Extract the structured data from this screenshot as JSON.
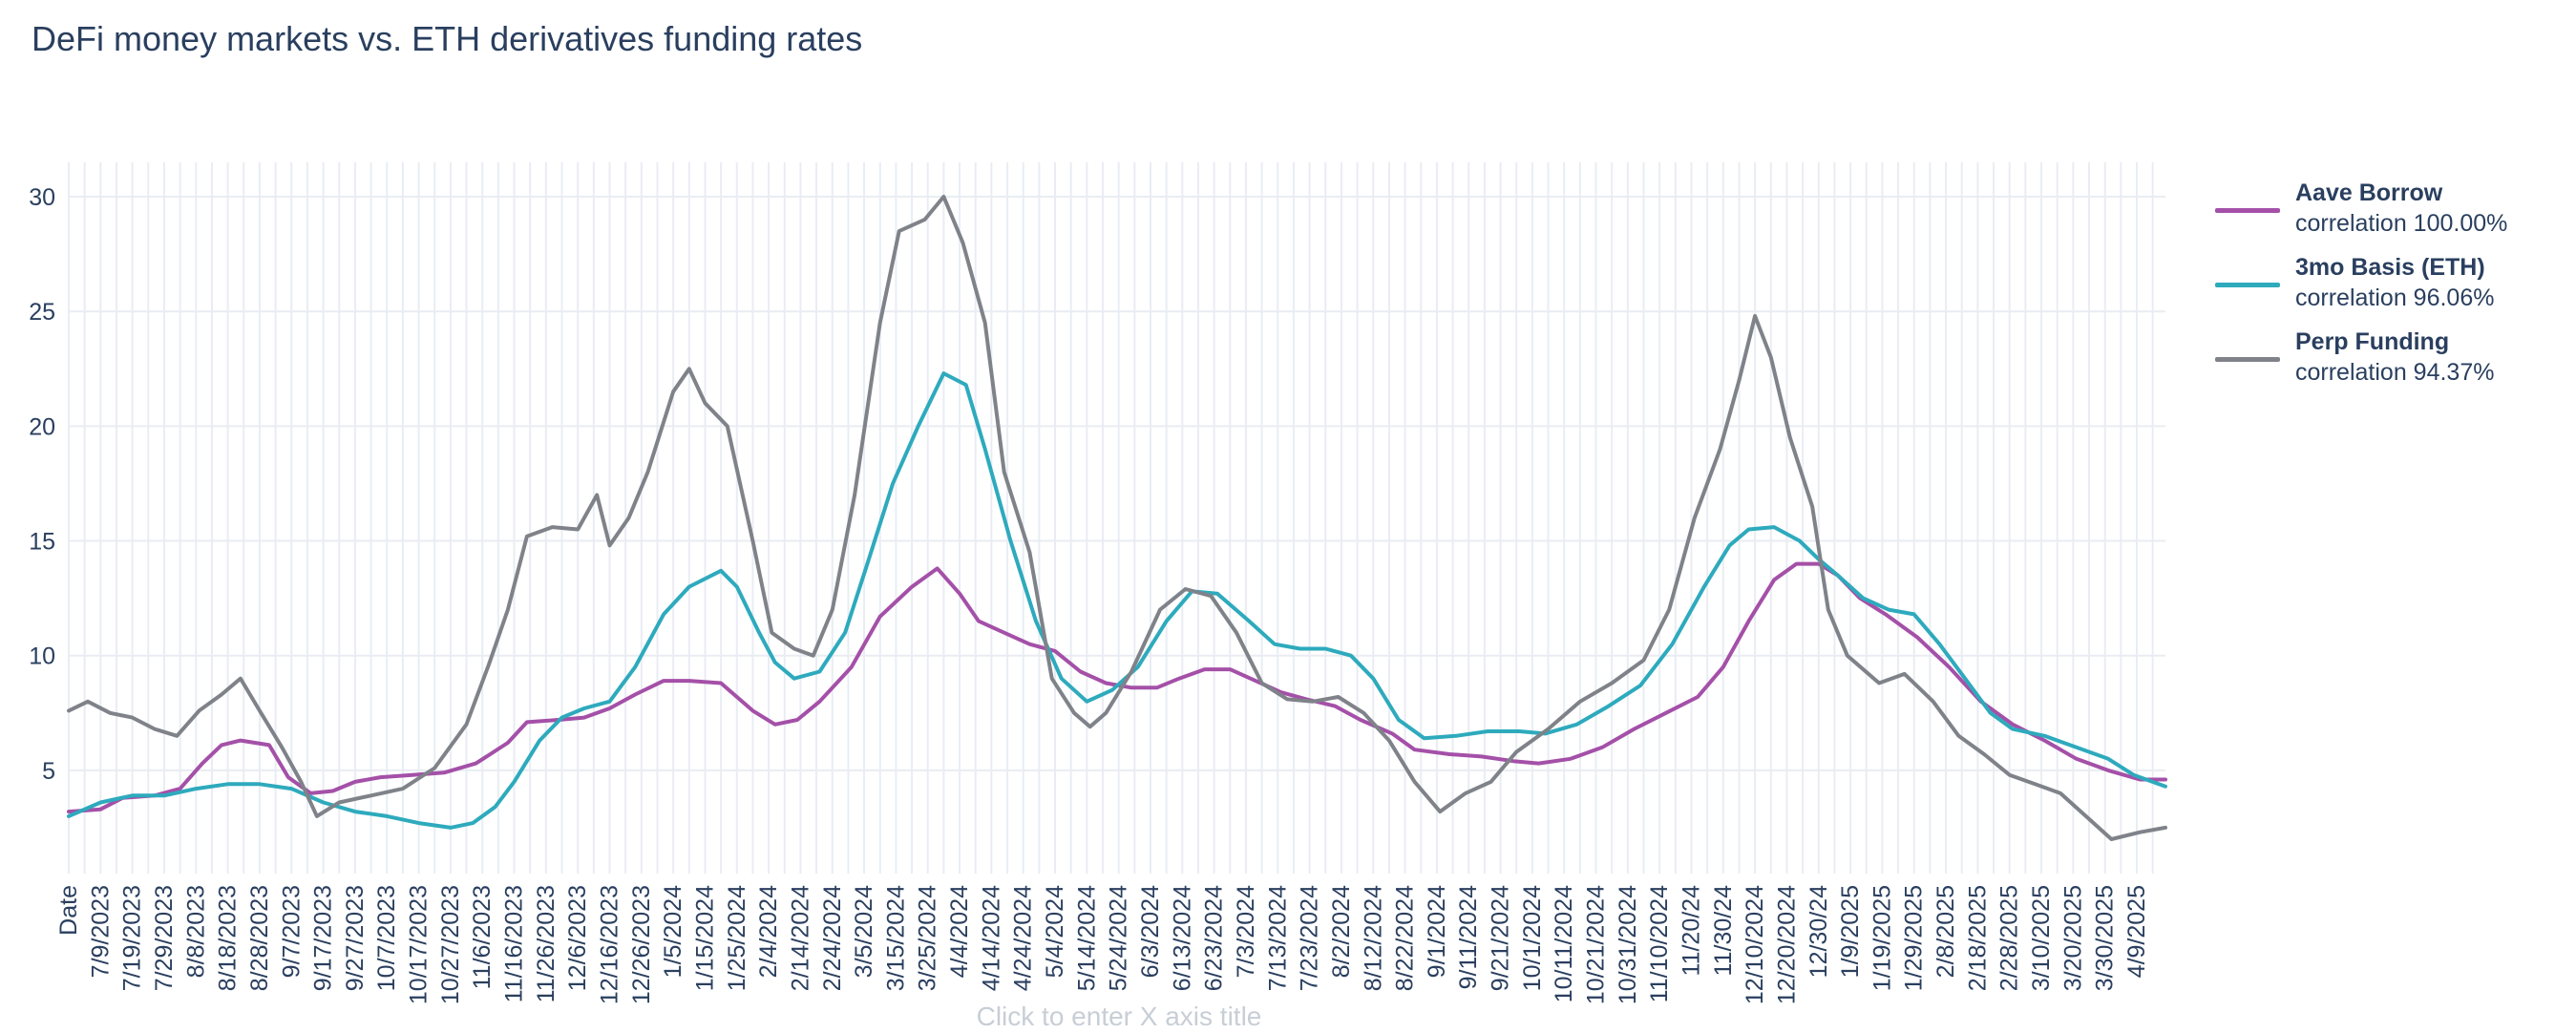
{
  "chart_data": {
    "type": "line",
    "title": "DeFi money markets vs. ETH derivatives funding rates",
    "xlabel_placeholder": "Click to enter X axis title",
    "x_first_label": "Date",
    "ylim": [
      0.5,
      31.5
    ],
    "yticks": [
      5,
      10,
      15,
      20,
      25,
      30
    ],
    "x_tick_dates": [
      "7/9/2023",
      "7/19/2023",
      "7/29/2023",
      "8/8/2023",
      "8/18/2023",
      "8/28/2023",
      "9/7/2023",
      "9/17/2023",
      "9/27/2023",
      "10/7/2023",
      "10/17/2023",
      "10/27/2023",
      "11/6/2023",
      "11/16/2023",
      "11/26/2023",
      "12/6/2023",
      "12/16/2023",
      "12/26/2023",
      "1/5/2024",
      "1/15/2024",
      "1/25/2024",
      "2/4/2024",
      "2/14/2024",
      "2/24/2024",
      "3/5/2024",
      "3/15/2024",
      "3/25/2024",
      "4/4/2024",
      "4/14/2024",
      "4/24/2024",
      "5/4/2024",
      "5/14/2024",
      "5/24/2024",
      "6/3/2024",
      "6/13/2024",
      "6/23/2024",
      "7/3/2024",
      "7/13/2024",
      "7/23/2024",
      "8/2/2024",
      "8/12/2024",
      "8/22/2024",
      "9/1/2024",
      "9/11/2024",
      "9/21/2024",
      "10/1/2024",
      "10/11/2024",
      "10/21/2024",
      "10/31/2024",
      "11/10/2024",
      "11/20/24",
      "11/30/24",
      "12/10/2024",
      "12/20/2024",
      "12/30/24",
      "1/9/2025",
      "1/19/2025",
      "1/29/2025",
      "2/8/2025",
      "2/18/2025",
      "2/28/2025",
      "3/10/2025",
      "3/20/2025",
      "3/30/2025",
      "4/9/2025"
    ],
    "grid": true,
    "legend_position": "right",
    "series": [
      {
        "name": "Aave Borrow",
        "legend_text": "correlation 100.00%",
        "color": "#a450a8",
        "points": [
          [
            "6/29/2023",
            3.2
          ],
          [
            "7/9/2023",
            3.3
          ],
          [
            "7/16/2023",
            3.8
          ],
          [
            "7/26/2023",
            3.9
          ],
          [
            "8/3/2023",
            4.2
          ],
          [
            "8/10/2023",
            5.3
          ],
          [
            "8/16/2023",
            6.1
          ],
          [
            "8/22/2023",
            6.3
          ],
          [
            "8/31/2023",
            6.1
          ],
          [
            "9/6/2023",
            4.7
          ],
          [
            "9/13/2023",
            4.0
          ],
          [
            "9/20/2023",
            4.1
          ],
          [
            "9/27/2023",
            4.5
          ],
          [
            "10/5/2023",
            4.7
          ],
          [
            "10/15/2023",
            4.8
          ],
          [
            "10/25/2023",
            4.9
          ],
          [
            "11/4/2023",
            5.3
          ],
          [
            "11/14/2023",
            6.2
          ],
          [
            "11/20/2023",
            7.1
          ],
          [
            "11/30/2023",
            7.2
          ],
          [
            "12/8/2023",
            7.3
          ],
          [
            "12/16/2023",
            7.7
          ],
          [
            "12/24/2023",
            8.3
          ],
          [
            "1/2/2024",
            8.9
          ],
          [
            "1/10/2024",
            8.9
          ],
          [
            "1/20/2024",
            8.8
          ],
          [
            "1/30/2024",
            7.6
          ],
          [
            "2/6/2024",
            7.0
          ],
          [
            "2/13/2024",
            7.2
          ],
          [
            "2/20/2024",
            8.0
          ],
          [
            "3/1/2024",
            9.5
          ],
          [
            "3/10/2024",
            11.7
          ],
          [
            "3/20/2024",
            13.0
          ],
          [
            "3/28/2024",
            13.8
          ],
          [
            "4/4/2024",
            12.7
          ],
          [
            "4/10/2024",
            11.5
          ],
          [
            "4/18/2024",
            11.0
          ],
          [
            "4/26/2024",
            10.5
          ],
          [
            "5/4/2024",
            10.2
          ],
          [
            "5/12/2024",
            9.3
          ],
          [
            "5/20/2024",
            8.8
          ],
          [
            "5/28/2024",
            8.6
          ],
          [
            "6/5/2024",
            8.6
          ],
          [
            "6/12/2024",
            9.0
          ],
          [
            "6/20/2024",
            9.4
          ],
          [
            "6/28/2024",
            9.4
          ],
          [
            "7/6/2024",
            8.9
          ],
          [
            "7/14/2024",
            8.4
          ],
          [
            "7/22/2024",
            8.1
          ],
          [
            "7/31/2024",
            7.8
          ],
          [
            "8/8/2024",
            7.2
          ],
          [
            "8/18/2024",
            6.6
          ],
          [
            "8/25/2024",
            5.9
          ],
          [
            "9/5/2024",
            5.7
          ],
          [
            "9/15/2024",
            5.6
          ],
          [
            "9/25/2024",
            5.4
          ],
          [
            "10/3/2024",
            5.3
          ],
          [
            "10/13/2024",
            5.5
          ],
          [
            "10/23/2024",
            6.0
          ],
          [
            "11/2/2024",
            6.8
          ],
          [
            "11/12/2024",
            7.5
          ],
          [
            "11/22/2024",
            8.2
          ],
          [
            "11/30/2024",
            9.5
          ],
          [
            "12/8/2024",
            11.5
          ],
          [
            "12/16/2024",
            13.3
          ],
          [
            "12/23/2024",
            14.0
          ],
          [
            "12/30/2024",
            14.0
          ],
          [
            "1/5/2025",
            13.5
          ],
          [
            "1/12/2025",
            12.5
          ],
          [
            "1/20/2025",
            11.8
          ],
          [
            "1/30/2025",
            10.8
          ],
          [
            "2/9/2025",
            9.5
          ],
          [
            "2/19/2025",
            8.0
          ],
          [
            "3/1/2025",
            7.0
          ],
          [
            "3/11/2025",
            6.3
          ],
          [
            "3/21/2025",
            5.5
          ],
          [
            "3/31/2025",
            5.0
          ],
          [
            "4/10/2025",
            4.6
          ],
          [
            "4/18/2025",
            4.6
          ]
        ]
      },
      {
        "name": "3mo Basis (ETH)",
        "legend_text": "correlation 96.06%",
        "color": "#2eaabd",
        "points": [
          [
            "6/29/2023",
            3.0
          ],
          [
            "7/9/2023",
            3.6
          ],
          [
            "7/19/2023",
            3.9
          ],
          [
            "7/29/2023",
            3.9
          ],
          [
            "8/8/2023",
            4.2
          ],
          [
            "8/18/2023",
            4.4
          ],
          [
            "8/28/2023",
            4.4
          ],
          [
            "9/7/2023",
            4.2
          ],
          [
            "9/17/2023",
            3.6
          ],
          [
            "9/27/2023",
            3.2
          ],
          [
            "10/7/2023",
            3.0
          ],
          [
            "10/17/2023",
            2.7
          ],
          [
            "10/27/2023",
            2.5
          ],
          [
            "11/3/2023",
            2.7
          ],
          [
            "11/10/2023",
            3.4
          ],
          [
            "11/16/2023",
            4.5
          ],
          [
            "11/24/2023",
            6.3
          ],
          [
            "12/1/2023",
            7.3
          ],
          [
            "12/8/2023",
            7.7
          ],
          [
            "12/16/2023",
            8.0
          ],
          [
            "12/24/2023",
            9.5
          ],
          [
            "1/2/2024",
            11.8
          ],
          [
            "1/10/2024",
            13.0
          ],
          [
            "1/20/2024",
            13.7
          ],
          [
            "1/25/2024",
            13.0
          ],
          [
            "2/1/2024",
            11.0
          ],
          [
            "2/6/2024",
            9.7
          ],
          [
            "2/12/2024",
            9.0
          ],
          [
            "2/20/2024",
            9.3
          ],
          [
            "2/28/2024",
            11.0
          ],
          [
            "3/6/2024",
            14.0
          ],
          [
            "3/14/2024",
            17.5
          ],
          [
            "3/22/2024",
            20.0
          ],
          [
            "3/30/2024",
            22.3
          ],
          [
            "4/6/2024",
            21.8
          ],
          [
            "4/12/2024",
            19.0
          ],
          [
            "4/20/2024",
            15.0
          ],
          [
            "4/28/2024",
            11.5
          ],
          [
            "5/6/2024",
            9.0
          ],
          [
            "5/14/2024",
            8.0
          ],
          [
            "5/22/2024",
            8.5
          ],
          [
            "5/30/2024",
            9.5
          ],
          [
            "6/8/2024",
            11.5
          ],
          [
            "6/16/2024",
            12.8
          ],
          [
            "6/24/2024",
            12.7
          ],
          [
            "7/4/2024",
            11.5
          ],
          [
            "7/12/2024",
            10.5
          ],
          [
            "7/20/2024",
            10.3
          ],
          [
            "7/28/2024",
            10.3
          ],
          [
            "8/5/2024",
            10.0
          ],
          [
            "8/12/2024",
            9.0
          ],
          [
            "8/20/2024",
            7.2
          ],
          [
            "8/28/2024",
            6.4
          ],
          [
            "9/7/2024",
            6.5
          ],
          [
            "9/17/2024",
            6.7
          ],
          [
            "9/27/2024",
            6.7
          ],
          [
            "10/5/2024",
            6.6
          ],
          [
            "10/15/2024",
            7.0
          ],
          [
            "10/25/2024",
            7.8
          ],
          [
            "11/4/2024",
            8.7
          ],
          [
            "11/14/2024",
            10.5
          ],
          [
            "11/24/2024",
            13.0
          ],
          [
            "12/2/2024",
            14.8
          ],
          [
            "12/8/2024",
            15.5
          ],
          [
            "12/16/2024",
            15.6
          ],
          [
            "12/24/2024",
            15.0
          ],
          [
            "12/30/2024",
            14.2
          ],
          [
            "1/5/2025",
            13.5
          ],
          [
            "1/13/2025",
            12.5
          ],
          [
            "1/21/2025",
            12.0
          ],
          [
            "1/29/2025",
            11.8
          ],
          [
            "2/6/2025",
            10.5
          ],
          [
            "2/14/2025",
            9.0
          ],
          [
            "2/22/2025",
            7.5
          ],
          [
            "3/1/2025",
            6.8
          ],
          [
            "3/11/2025",
            6.5
          ],
          [
            "3/21/2025",
            6.0
          ],
          [
            "3/31/2025",
            5.5
          ],
          [
            "4/8/2025",
            4.8
          ],
          [
            "4/18/2025",
            4.3
          ]
        ]
      },
      {
        "name": "Perp Funding",
        "legend_text": "correlation 94.37%",
        "color": "#7f8389",
        "points": [
          [
            "6/29/2023",
            7.6
          ],
          [
            "7/5/2023",
            8.0
          ],
          [
            "7/12/2023",
            7.5
          ],
          [
            "7/19/2023",
            7.3
          ],
          [
            "7/26/2023",
            6.8
          ],
          [
            "8/2/2023",
            6.5
          ],
          [
            "8/9/2023",
            7.6
          ],
          [
            "8/16/2023",
            8.3
          ],
          [
            "8/22/2023",
            9.0
          ],
          [
            "8/28/2023",
            7.6
          ],
          [
            "9/4/2023",
            6.0
          ],
          [
            "9/10/2023",
            4.5
          ],
          [
            "9/15/2023",
            3.0
          ],
          [
            "9/22/2023",
            3.6
          ],
          [
            "10/2/2023",
            3.9
          ],
          [
            "10/12/2023",
            4.2
          ],
          [
            "10/22/2023",
            5.1
          ],
          [
            "11/1/2023",
            7.0
          ],
          [
            "11/8/2023",
            9.6
          ],
          [
            "11/14/2023",
            12.0
          ],
          [
            "11/20/2023",
            15.2
          ],
          [
            "11/28/2023",
            15.6
          ],
          [
            "12/6/2023",
            15.5
          ],
          [
            "12/12/2023",
            17.0
          ],
          [
            "12/16/2023",
            14.8
          ],
          [
            "12/22/2023",
            16.0
          ],
          [
            "12/28/2023",
            18.0
          ],
          [
            "1/5/2024",
            21.5
          ],
          [
            "1/10/2024",
            22.5
          ],
          [
            "1/15/2024",
            21.0
          ],
          [
            "1/22/2024",
            20.0
          ],
          [
            "1/30/2024",
            15.0
          ],
          [
            "2/5/2024",
            11.0
          ],
          [
            "2/12/2024",
            10.3
          ],
          [
            "2/18/2024",
            10.0
          ],
          [
            "2/24/2024",
            12.0
          ],
          [
            "3/2/2024",
            17.0
          ],
          [
            "3/10/2024",
            24.5
          ],
          [
            "3/16/2024",
            28.5
          ],
          [
            "3/24/2024",
            29.0
          ],
          [
            "3/30/2024",
            30.0
          ],
          [
            "4/5/2024",
            28.0
          ],
          [
            "4/12/2024",
            24.5
          ],
          [
            "4/18/2024",
            18.0
          ],
          [
            "4/26/2024",
            14.5
          ],
          [
            "5/3/2024",
            9.0
          ],
          [
            "5/10/2024",
            7.5
          ],
          [
            "5/15/2024",
            6.9
          ],
          [
            "5/20/2024",
            7.5
          ],
          [
            "5/28/2024",
            9.3
          ],
          [
            "6/6/2024",
            12.0
          ],
          [
            "6/14/2024",
            12.9
          ],
          [
            "6/22/2024",
            12.6
          ],
          [
            "6/30/2024",
            11.0
          ],
          [
            "7/8/2024",
            8.8
          ],
          [
            "7/16/2024",
            8.1
          ],
          [
            "7/24/2024",
            8.0
          ],
          [
            "8/1/2024",
            8.2
          ],
          [
            "8/9/2024",
            7.5
          ],
          [
            "8/17/2024",
            6.3
          ],
          [
            "8/25/2024",
            4.5
          ],
          [
            "9/2/2024",
            3.2
          ],
          [
            "9/10/2024",
            4.0
          ],
          [
            "9/18/2024",
            4.5
          ],
          [
            "9/26/2024",
            5.8
          ],
          [
            "10/6/2024",
            6.8
          ],
          [
            "10/16/2024",
            8.0
          ],
          [
            "10/26/2024",
            8.8
          ],
          [
            "11/5/2024",
            9.8
          ],
          [
            "11/13/2024",
            12.0
          ],
          [
            "11/21/2024",
            16.0
          ],
          [
            "11/29/2024",
            19.0
          ],
          [
            "12/5/2024",
            22.0
          ],
          [
            "12/10/2024",
            24.8
          ],
          [
            "12/15/2024",
            23.0
          ],
          [
            "12/21/2024",
            19.5
          ],
          [
            "12/28/2024",
            16.5
          ],
          [
            "1/2/2025",
            12.0
          ],
          [
            "1/8/2025",
            10.0
          ],
          [
            "1/18/2025",
            8.8
          ],
          [
            "1/26/2025",
            9.2
          ],
          [
            "2/4/2025",
            8.0
          ],
          [
            "2/12/2025",
            6.5
          ],
          [
            "2/20/2025",
            5.7
          ],
          [
            "2/28/2025",
            4.8
          ],
          [
            "3/8/2025",
            4.4
          ],
          [
            "3/16/2025",
            4.0
          ],
          [
            "3/24/2025",
            3.0
          ],
          [
            "4/1/2025",
            2.0
          ],
          [
            "4/10/2025",
            2.3
          ],
          [
            "4/18/2025",
            2.5
          ]
        ]
      }
    ]
  }
}
